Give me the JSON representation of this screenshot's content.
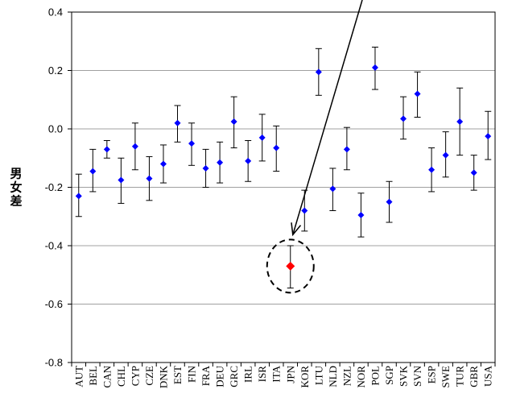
{
  "chart_data": {
    "type": "scatter",
    "ylabel": "男女差",
    "ylim": [
      -0.8,
      0.4
    ],
    "yticks": [
      "0.4",
      "0.2",
      "0.0",
      "-0.2",
      "-0.4",
      "-0.6",
      "-0.8"
    ],
    "grid": true,
    "categories": [
      "AUT",
      "BEL",
      "CAN",
      "CHL",
      "CYP",
      "CZE",
      "DNK",
      "EST",
      "FIN",
      "FRA",
      "DEU",
      "GRC",
      "IRL",
      "ISR",
      "ITA",
      "JPN",
      "KOR",
      "LTU",
      "NLD",
      "NZL",
      "NOR",
      "POL",
      "SGP",
      "SVK",
      "SVN",
      "ESP",
      "SWE",
      "TUR",
      "GBR",
      "USA"
    ],
    "series": [
      {
        "values": [
          -0.23,
          -0.145,
          -0.07,
          -0.175,
          -0.06,
          -0.17,
          -0.12,
          0.02,
          -0.05,
          -0.135,
          -0.115,
          0.025,
          -0.11,
          -0.03,
          -0.065,
          -0.47,
          -0.28,
          0.195,
          -0.205,
          -0.07,
          -0.295,
          0.21,
          -0.25,
          0.035,
          0.12,
          -0.14,
          -0.09,
          0.025,
          -0.15,
          -0.025
        ],
        "err_low": [
          -0.3,
          -0.215,
          -0.1,
          -0.255,
          -0.14,
          -0.245,
          -0.185,
          -0.045,
          -0.125,
          -0.2,
          -0.185,
          -0.065,
          -0.18,
          -0.11,
          -0.145,
          -0.545,
          -0.35,
          0.115,
          -0.28,
          -0.14,
          -0.37,
          0.135,
          -0.32,
          -0.035,
          0.04,
          -0.215,
          -0.165,
          -0.09,
          -0.21,
          -0.105
        ],
        "err_high": [
          -0.155,
          -0.07,
          -0.04,
          -0.1,
          0.02,
          -0.095,
          -0.055,
          0.08,
          0.02,
          -0.07,
          -0.045,
          0.11,
          -0.04,
          0.05,
          0.01,
          -0.4,
          -0.21,
          0.275,
          -0.135,
          0.005,
          -0.22,
          0.28,
          -0.18,
          0.11,
          0.195,
          -0.065,
          -0.01,
          0.14,
          -0.09,
          0.06
        ],
        "color": "#0000ff",
        "highlight_category": "JPN",
        "highlight_color": "#ff0000"
      }
    ]
  }
}
